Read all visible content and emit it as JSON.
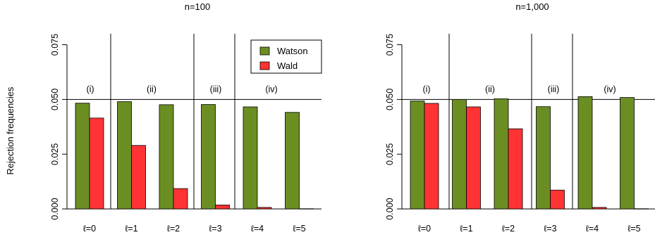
{
  "ylabel": "Rejection frequencies",
  "colors": {
    "watson": "#6b8e23",
    "wald": "#ff3333",
    "stroke": "#000000"
  },
  "legend": {
    "placement": "top-right of first panel",
    "entries": [
      "Watson",
      "Wald"
    ]
  },
  "chart_data": [
    {
      "type": "bar",
      "title": "n=100",
      "categories": [
        "ℓ=0",
        "ℓ=1",
        "ℓ=2",
        "ℓ=3",
        "ℓ=4",
        "ℓ=5"
      ],
      "series": [
        {
          "name": "Watson",
          "values": [
            0.0483,
            0.049,
            0.0476,
            0.0477,
            0.0466,
            0.0441
          ]
        },
        {
          "name": "Wald",
          "values": [
            0.0415,
            0.029,
            0.0093,
            0.0018,
            0.0007,
            0.0001
          ]
        }
      ],
      "ylim": [
        0,
        0.08
      ],
      "yticks": [
        "0.000",
        "0.025",
        "0.050",
        "0.075"
      ],
      "reference_line": 0.05,
      "groups": [
        "(i)",
        "(ii)",
        "(iii)",
        "(iv)"
      ]
    },
    {
      "type": "bar",
      "title": "n=1,000",
      "categories": [
        "ℓ=0",
        "ℓ=1",
        "ℓ=2",
        "ℓ=3",
        "ℓ=4",
        "ℓ=5"
      ],
      "series": [
        {
          "name": "Watson",
          "values": [
            0.0493,
            0.05,
            0.0503,
            0.0467,
            0.0513,
            0.0509
          ]
        },
        {
          "name": "Wald",
          "values": [
            0.0482,
            0.0466,
            0.0366,
            0.0086,
            0.0007,
            0.0001
          ]
        }
      ],
      "ylim": [
        0,
        0.08
      ],
      "yticks": [
        "0.000",
        "0.025",
        "0.050",
        "0.075"
      ],
      "reference_line": 0.05,
      "groups": [
        "(i)",
        "(ii)",
        "(iii)",
        "(iv)"
      ]
    }
  ]
}
